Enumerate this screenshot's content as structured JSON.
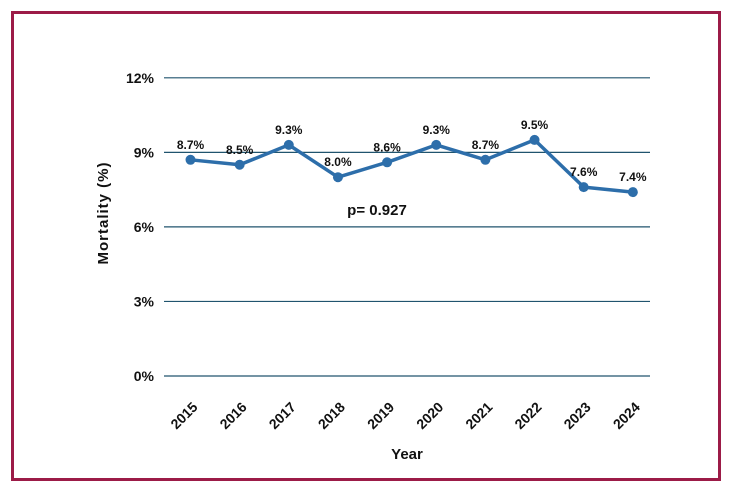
{
  "chart_data": {
    "type": "line",
    "title": "",
    "xlabel": "Year",
    "ylabel": "Mortality (%)",
    "annotation": "p= 0.927",
    "categories": [
      "2015",
      "2016",
      "2017",
      "2018",
      "2019",
      "2020",
      "2021",
      "2022",
      "2023",
      "2024"
    ],
    "series": [
      {
        "values": [
          8.7,
          8.5,
          9.3,
          8.0,
          8.6,
          9.3,
          8.7,
          9.5,
          7.6,
          7.4
        ],
        "labels": [
          "8.7%",
          "8.5%",
          "9.3%",
          "8.0%",
          "8.6%",
          "9.3%",
          "8.7%",
          "9.5%",
          "7.6%",
          "7.4%"
        ],
        "color": "#2D6EAA",
        "marker": "circle"
      }
    ],
    "y_axis": {
      "range": [
        0,
        12
      ],
      "ticks": [
        {
          "value": 0,
          "label": "0%"
        },
        {
          "value": 3,
          "label": "3%"
        },
        {
          "value": 6,
          "label": "6%"
        },
        {
          "value": 9,
          "label": "9%"
        },
        {
          "value": 12,
          "label": "12%"
        }
      ]
    },
    "grid": {
      "horizontal": true,
      "vertical": false,
      "color": "#20546E"
    },
    "legend": "none",
    "frame_border_color": "#9C1B47",
    "background": "#FFFFFF",
    "text_color": "#111111"
  }
}
